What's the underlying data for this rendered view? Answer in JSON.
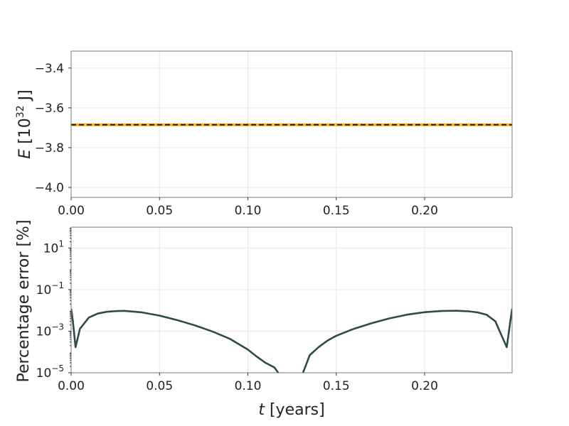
{
  "chart_data": [
    {
      "type": "line",
      "xlim": [
        0,
        0.2495
      ],
      "ylim": [
        -4.05,
        -3.315
      ],
      "ylabel": {
        "italic": "E",
        "pre": " [10",
        "sup": "32",
        "post": " J]"
      },
      "xticks": [
        0.0,
        0.05,
        0.1,
        0.15,
        0.2
      ],
      "xtick_labels": [
        "0.00",
        "0.05",
        "0.10",
        "0.15",
        "0.20"
      ],
      "yticks": [
        -3.4,
        -3.6,
        -3.8,
        -4.0
      ],
      "ytick_labels": [
        "−3.4",
        "−3.6",
        "−3.8",
        "−4.0"
      ],
      "grid": true,
      "series": [
        {
          "x": [
            0.0,
            0.2495
          ],
          "values": [
            -3.685,
            -3.685
          ],
          "color": "#f4b21a",
          "style": "solid"
        },
        {
          "x": [
            0.0,
            0.2495
          ],
          "values": [
            -3.685,
            -3.685
          ],
          "color": "#111111",
          "style": "dashed"
        }
      ]
    },
    {
      "type": "line",
      "scale_y": "log",
      "xlim": [
        0,
        0.2495
      ],
      "ylim_log10": [
        -5,
        2
      ],
      "ylabel": "Percentage error [%]",
      "xlabel": {
        "italic": "t",
        "rest": " [years]"
      },
      "xticks": [
        0.0,
        0.05,
        0.1,
        0.15,
        0.2
      ],
      "xtick_labels": [
        "0.00",
        "0.05",
        "0.10",
        "0.15",
        "0.20"
      ],
      "yticks_log10": [
        1,
        -1,
        -3,
        -5
      ],
      "ytick_labels": [
        {
          "base": "10",
          "exp": "1"
        },
        {
          "base": "10",
          "exp": "−1"
        },
        {
          "base": "10",
          "exp": "−3"
        },
        {
          "base": "10",
          "exp": "−5"
        }
      ],
      "grid": true,
      "series": [
        {
          "color": "#2e4a4a",
          "x": [
            0.0,
            0.001,
            0.0025,
            0.005,
            0.01,
            0.015,
            0.02,
            0.025,
            0.03,
            0.04,
            0.05,
            0.06,
            0.07,
            0.08,
            0.09,
            0.1,
            0.105,
            0.11,
            0.115,
            0.1185,
            0.119,
            0.13,
            0.1305,
            0.135,
            0.14,
            0.145,
            0.15,
            0.16,
            0.17,
            0.18,
            0.19,
            0.2,
            0.21,
            0.218,
            0.225,
            0.23,
            0.235,
            0.24,
            0.244,
            0.2465,
            0.248,
            0.2495
          ],
          "values": [
            0.012,
            0.003,
            0.00017,
            0.0013,
            0.0045,
            0.007,
            0.0085,
            0.0092,
            0.0095,
            0.008,
            0.0056,
            0.0034,
            0.0019,
            0.00096,
            0.00042,
            0.00013,
            6e-05,
            3e-05,
            1.8e-05,
            7e-06,
            5e-06,
            5e-06,
            7e-06,
            7e-05,
            0.00017,
            0.00035,
            0.0006,
            0.0013,
            0.0024,
            0.0041,
            0.0062,
            0.0082,
            0.0094,
            0.0096,
            0.009,
            0.008,
            0.0062,
            0.003,
            0.0005,
            0.00017,
            0.0015,
            0.012
          ]
        }
      ]
    }
  ]
}
